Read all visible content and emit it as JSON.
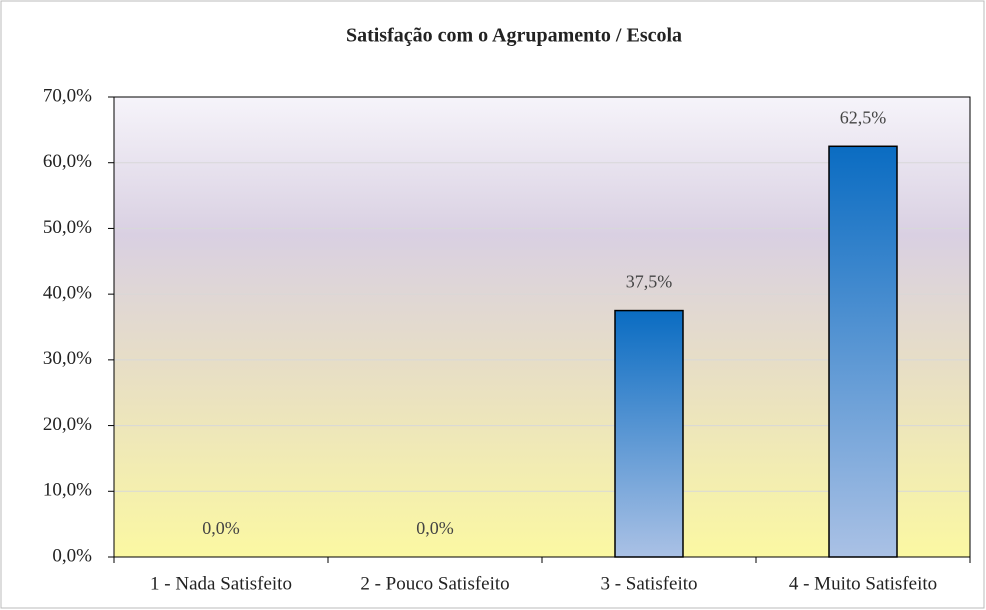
{
  "chart_data": {
    "type": "bar",
    "title": "Satisfação com o  Agrupamento / Escola",
    "categories": [
      "1 - Nada Satisfeito",
      "2 - Pouco Satisfeito",
      "3 - Satisfeito",
      "4 - Muito Satisfeito"
    ],
    "values": [
      0,
      0,
      37.5,
      62.5
    ],
    "value_labels": [
      "0,0%",
      "0,0%",
      "37,5%",
      "62,5%"
    ],
    "color": "#1a72c2",
    "ylim": [
      0,
      70
    ],
    "yticks": [
      {
        "value": 0,
        "label": "0,0%"
      },
      {
        "value": 10,
        "label": "10,0%"
      },
      {
        "value": 20,
        "label": "20,0%"
      },
      {
        "value": 30,
        "label": "30,0%"
      },
      {
        "value": 40,
        "label": "40,0%"
      },
      {
        "value": 50,
        "label": "50,0%"
      },
      {
        "value": 60,
        "label": "60,0%"
      },
      {
        "value": 70,
        "label": "70,0%"
      }
    ],
    "grid": true
  }
}
